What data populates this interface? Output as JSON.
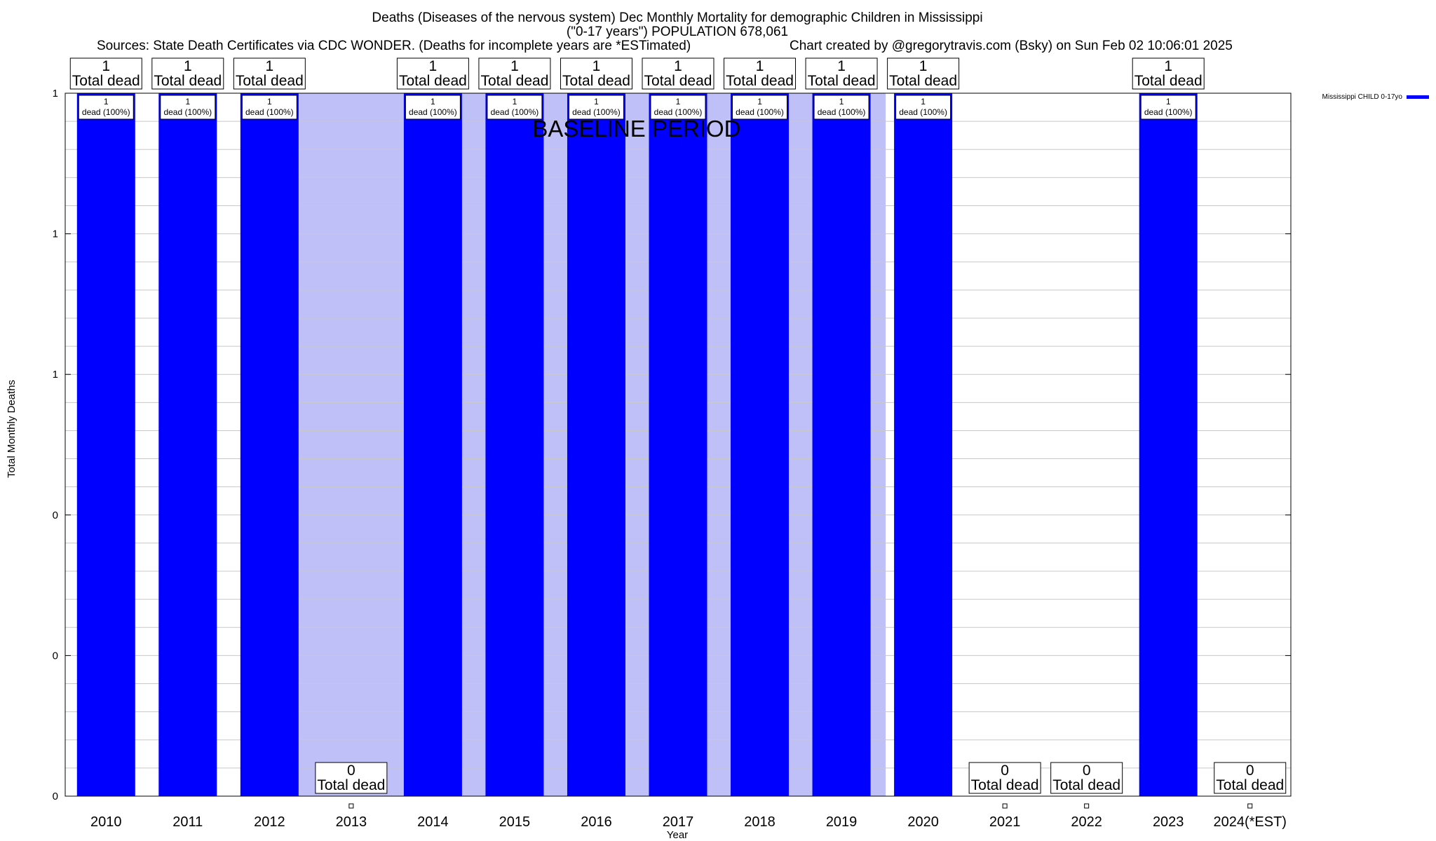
{
  "chart_data": {
    "type": "bar",
    "title_lines": [
      "Deaths (Diseases of the nervous system) Dec Monthly Mortality for demographic Children in Mississippi",
      "(\"0-17 years\") POPULATION 678,061"
    ],
    "sources_text": "Sources: State Death Certificates via CDC WONDER. (Deaths for incomplete years are *ESTimated)",
    "credit_text": "Chart created by @gregorytravis.com (Bsky) on Sun Feb 02 10:06:01 2025",
    "xlabel": "Year",
    "ylabel": "Total Monthly Deaths",
    "categories": [
      "2010",
      "2011",
      "2012",
      "2013",
      "2014",
      "2015",
      "2016",
      "2017",
      "2018",
      "2019",
      "2020",
      "2021",
      "2022",
      "2023",
      "2024(*EST)"
    ],
    "series": [
      {
        "name": "Mississippi CHILD 0-17yo",
        "color": "#0000ff",
        "values": [
          1,
          1,
          1,
          0,
          1,
          1,
          1,
          1,
          1,
          1,
          1,
          0,
          0,
          1,
          0
        ]
      }
    ],
    "ylim": [
      0,
      1
    ],
    "y_tick_values": [
      0,
      0.2,
      0.4,
      0.6,
      0.8,
      1.0
    ],
    "y_tick_labels": [
      "0",
      "0",
      "0",
      "1",
      "1",
      "1"
    ],
    "total_labels": [
      "1",
      "1",
      "1",
      "0",
      "1",
      "1",
      "1",
      "1",
      "1",
      "1",
      "1",
      "0",
      "0",
      "1",
      "0"
    ],
    "total_caption": "Total dead",
    "bar_labels": [
      "1",
      "1",
      "1",
      "",
      "1",
      "1",
      "1",
      "1",
      "1",
      "1",
      "1",
      "",
      "",
      "1",
      ""
    ],
    "bar_caption": "dead (100%)",
    "baseline_label": "BASELINE PERIOD",
    "baseline_start": "2012",
    "baseline_end": "2020",
    "baseline_color": "#c0c0f8",
    "grid": true,
    "legend_position": "top-right"
  }
}
